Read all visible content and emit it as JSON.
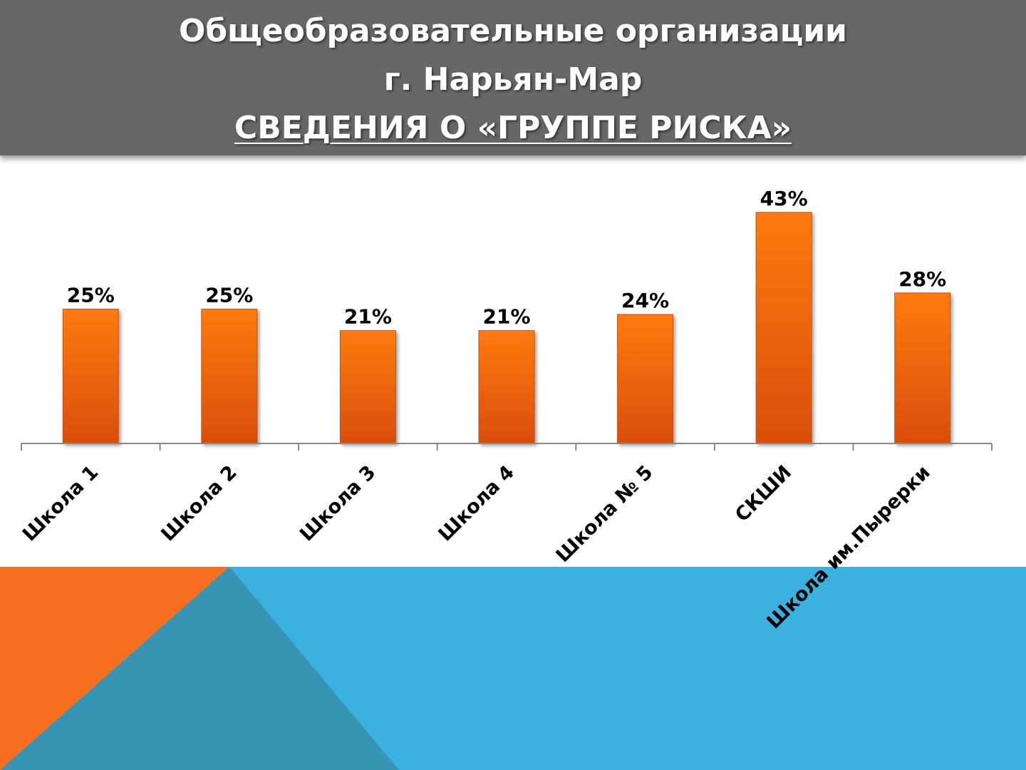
{
  "header": {
    "line1": "Общеобразовательные организации",
    "line2": "г. Нарьян-Мар",
    "line3": "СВЕДЕНИЯ О «ГРУППЕ РИСКА»"
  },
  "colors": {
    "header_bg": "#666769",
    "bar_top": "#ff7a12",
    "bar_bottom": "#d94e06",
    "deco_orange": "#f56f1f",
    "deco_blue": "#3ab1de",
    "deco_teal": "#3894b3"
  },
  "chart_data": {
    "type": "bar",
    "categories": [
      "Школа 1",
      "Школа 2",
      "Школа 3",
      "Школа 4",
      "Школа № 5",
      "СКШИ",
      "Школа им.Пырерки"
    ],
    "values": [
      25,
      25,
      21,
      21,
      24,
      43,
      28
    ],
    "value_labels": [
      "25%",
      "25%",
      "21%",
      "21%",
      "24%",
      "43%",
      "28%"
    ],
    "unit": "%",
    "ylim": [
      0,
      50
    ],
    "grid": false,
    "legend": "none"
  }
}
